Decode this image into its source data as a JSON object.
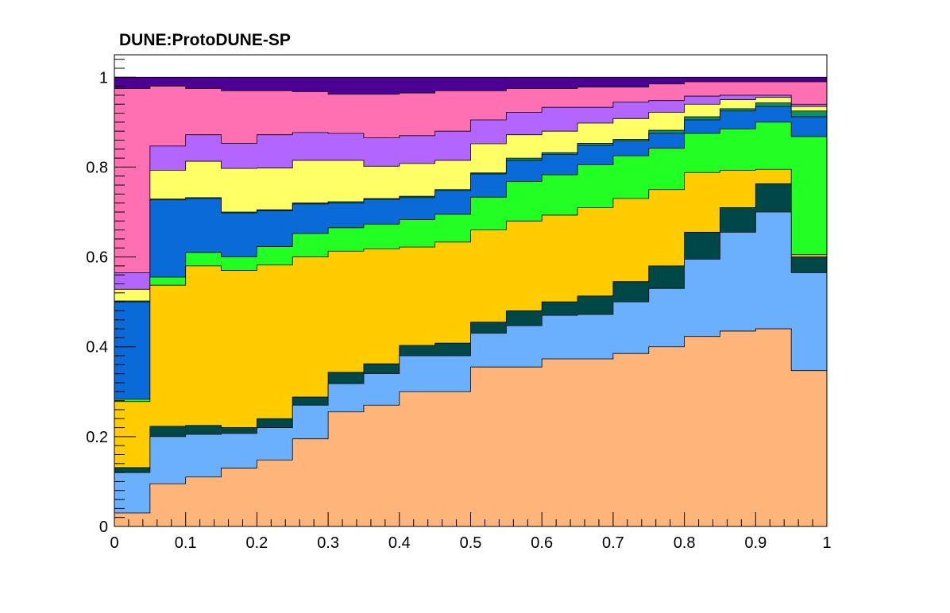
{
  "chart_data": {
    "type": "area",
    "title": "DUNE:ProtoDUNE-SP",
    "xlabel": "",
    "ylabel": "",
    "xlim": [
      0,
      1
    ],
    "ylim": [
      0,
      1.05
    ],
    "grid": false,
    "legend": "none",
    "x_ticks": [
      "0",
      "0.1",
      "0.2",
      "0.3",
      "0.4",
      "0.5",
      "0.6",
      "0.7",
      "0.8",
      "0.9",
      "1"
    ],
    "y_ticks": [
      "0",
      "0.2",
      "0.4",
      "0.6",
      "0.8",
      "1"
    ],
    "bin_edges": [
      0,
      0.05,
      0.1,
      0.15,
      0.2,
      0.25,
      0.3,
      0.35,
      0.4,
      0.45,
      0.5,
      0.55,
      0.6,
      0.65,
      0.7,
      0.75,
      0.8,
      0.85,
      0.9,
      0.95,
      1.0
    ],
    "series": [
      {
        "color": "#ffb479",
        "cumulative": [
          0.03,
          0.095,
          0.11,
          0.13,
          0.148,
          0.195,
          0.255,
          0.27,
          0.3,
          0.3,
          0.355,
          0.355,
          0.373,
          0.373,
          0.385,
          0.4,
          0.423,
          0.435,
          0.44,
          0.347
        ]
      },
      {
        "color": "#6bb0ff",
        "cumulative": [
          0.12,
          0.2,
          0.205,
          0.207,
          0.22,
          0.27,
          0.318,
          0.34,
          0.38,
          0.38,
          0.43,
          0.447,
          0.47,
          0.472,
          0.5,
          0.53,
          0.595,
          0.655,
          0.7,
          0.565
        ]
      },
      {
        "color": "#004747",
        "cumulative": [
          0.131,
          0.223,
          0.225,
          0.22,
          0.24,
          0.288,
          0.343,
          0.362,
          0.403,
          0.408,
          0.455,
          0.48,
          0.5,
          0.513,
          0.545,
          0.58,
          0.655,
          0.71,
          0.763,
          0.6
        ]
      },
      {
        "color": "#ffcc00",
        "cumulative": [
          0.278,
          0.537,
          0.58,
          0.57,
          0.582,
          0.6,
          0.613,
          0.618,
          0.622,
          0.633,
          0.66,
          0.68,
          0.693,
          0.71,
          0.73,
          0.75,
          0.788,
          0.793,
          0.795,
          0.605
        ]
      },
      {
        "color": "#22ff22",
        "cumulative": [
          0.283,
          0.555,
          0.61,
          0.6,
          0.623,
          0.652,
          0.665,
          0.673,
          0.683,
          0.695,
          0.733,
          0.768,
          0.783,
          0.805,
          0.825,
          0.842,
          0.875,
          0.885,
          0.9,
          0.868
        ]
      },
      {
        "color": "#0a6ad8",
        "cumulative": [
          0.5,
          0.727,
          0.73,
          0.698,
          0.703,
          0.718,
          0.72,
          0.728,
          0.732,
          0.748,
          0.785,
          0.815,
          0.828,
          0.848,
          0.858,
          0.875,
          0.905,
          0.925,
          0.935,
          0.912
        ]
      },
      {
        "color": "#0e8f6a",
        "cumulative": [
          0.502,
          0.729,
          0.732,
          0.7,
          0.705,
          0.72,
          0.723,
          0.73,
          0.735,
          0.75,
          0.787,
          0.82,
          0.832,
          0.853,
          0.862,
          0.882,
          0.912,
          0.93,
          0.943,
          0.925
        ]
      },
      {
        "color": "#ffff66",
        "cumulative": [
          0.528,
          0.793,
          0.813,
          0.797,
          0.798,
          0.815,
          0.815,
          0.802,
          0.808,
          0.815,
          0.852,
          0.872,
          0.88,
          0.898,
          0.908,
          0.922,
          0.94,
          0.95,
          0.955,
          0.935
        ]
      },
      {
        "color": "#b366ff",
        "cumulative": [
          0.565,
          0.847,
          0.872,
          0.853,
          0.872,
          0.877,
          0.875,
          0.865,
          0.87,
          0.88,
          0.905,
          0.922,
          0.933,
          0.933,
          0.945,
          0.948,
          0.958,
          0.96,
          0.96,
          0.94
        ]
      },
      {
        "color": "#ff70b3",
        "cumulative": [
          0.975,
          0.98,
          0.975,
          0.97,
          0.97,
          0.968,
          0.962,
          0.962,
          0.965,
          0.97,
          0.97,
          0.975,
          0.975,
          0.978,
          0.978,
          0.985,
          0.99,
          0.99,
          0.99,
          0.99
        ]
      },
      {
        "color": "#4b0093",
        "cumulative": [
          1,
          1,
          1,
          1,
          1,
          1,
          1,
          1,
          1,
          1,
          1,
          1,
          1,
          1,
          1,
          1,
          1,
          1,
          1,
          1
        ]
      }
    ]
  }
}
